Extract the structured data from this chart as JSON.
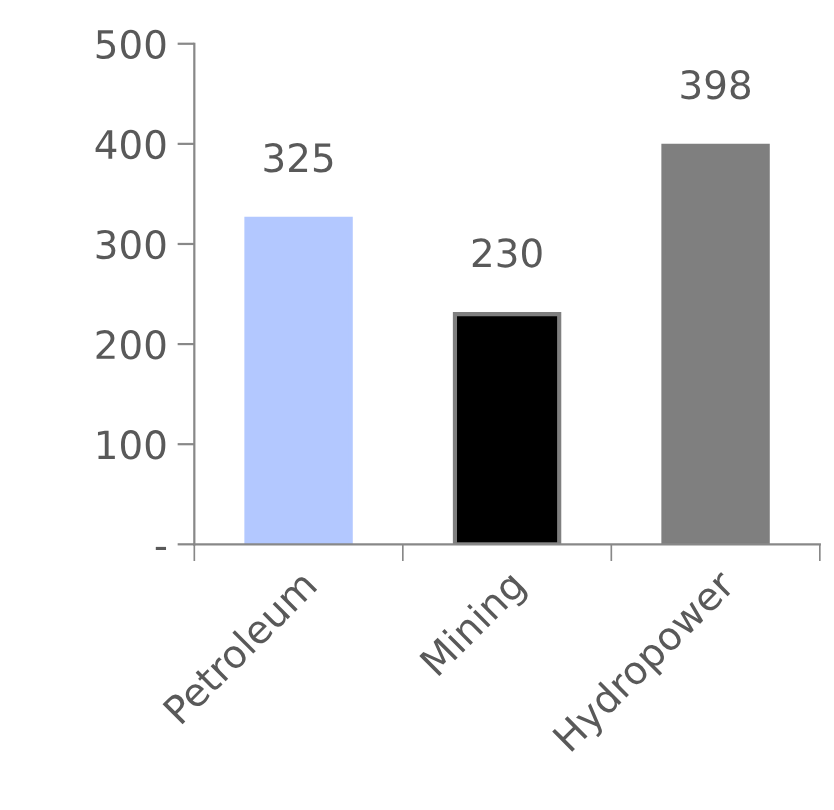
{
  "chart_data": {
    "type": "bar",
    "categories": [
      "Petroleum",
      "Mining",
      "Hydropower"
    ],
    "values": [
      325,
      230,
      398
    ],
    "colors": [
      "#b3c8ff",
      "#000000",
      "#7f7f7f"
    ],
    "ylim": [
      0,
      500
    ],
    "yticks": [
      {
        "value": 0,
        "label": "-"
      },
      100,
      200,
      300,
      400,
      500
    ],
    "data_labels": true,
    "grid": false,
    "legend": false
  }
}
